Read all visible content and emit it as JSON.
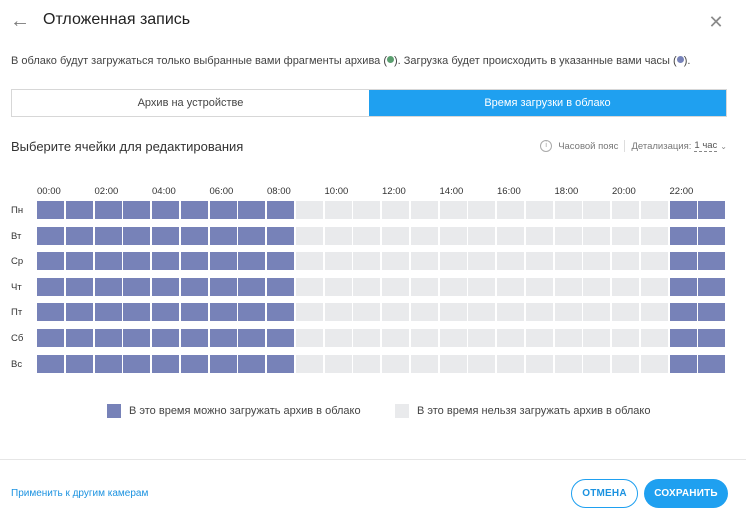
{
  "header": {
    "back_icon": "arrow-left-icon",
    "title": "Отложенная запись",
    "close_icon": "close-icon"
  },
  "description": {
    "part1": "В облако будут загружаться только выбранные вами фрагменты архива (",
    "part2": "). Загрузка будет происходить в указанные вами часы (",
    "part3": ").",
    "green_color": "#5a9e6f",
    "purple_color": "#7782b8"
  },
  "tabs": [
    {
      "label": "Архив на устройстве",
      "active": false
    },
    {
      "label": "Время загрузки в облако",
      "active": true
    }
  ],
  "subtitle": "Выберите ячейки для редактирования",
  "controls": {
    "timezone_label": "Часовой пояс",
    "detail_label": "Детализация:",
    "detail_value": "1 час"
  },
  "schedule": {
    "hour_labels": [
      "00:00",
      "02:00",
      "04:00",
      "06:00",
      "08:00",
      "10:00",
      "12:00",
      "14:00",
      "16:00",
      "18:00",
      "20:00",
      "22:00"
    ],
    "days": [
      "Пн",
      "Вт",
      "Ср",
      "Чт",
      "Пт",
      "Сб",
      "Вс"
    ],
    "enabled_hours": [
      0,
      1,
      2,
      3,
      4,
      5,
      6,
      7,
      8,
      22,
      23
    ],
    "on_color": "#7782b8",
    "off_color": "#e9eaec"
  },
  "legend": {
    "allowed": "В это время можно загружать архив в облако",
    "forbidden": "В это время нельзя загружать архив в облако"
  },
  "footer": {
    "apply_link": "Применить к другим камерам",
    "cancel_label": "ОТМЕНА",
    "save_label": "СОХРАНИТЬ"
  }
}
